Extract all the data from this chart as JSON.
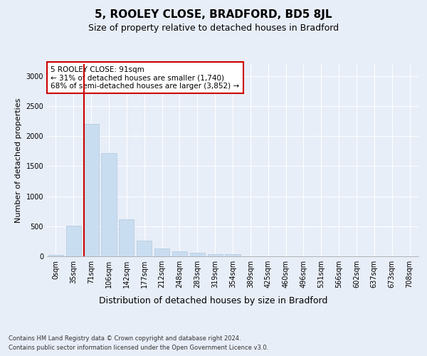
{
  "title1": "5, ROOLEY CLOSE, BRADFORD, BD5 8JL",
  "title2": "Size of property relative to detached houses in Bradford",
  "xlabel": "Distribution of detached houses by size in Bradford",
  "ylabel": "Number of detached properties",
  "categories": [
    "0sqm",
    "35sqm",
    "71sqm",
    "106sqm",
    "142sqm",
    "177sqm",
    "212sqm",
    "248sqm",
    "283sqm",
    "319sqm",
    "354sqm",
    "389sqm",
    "425sqm",
    "460sqm",
    "496sqm",
    "531sqm",
    "566sqm",
    "602sqm",
    "637sqm",
    "673sqm",
    "708sqm"
  ],
  "values": [
    20,
    510,
    2200,
    1720,
    620,
    255,
    130,
    80,
    55,
    40,
    30,
    5,
    5,
    5,
    5,
    5,
    2,
    2,
    2,
    2,
    2
  ],
  "bar_color": "#c9ddf0",
  "bar_edge_color": "#b0c8e0",
  "vline_color": "#cc0000",
  "annotation_text": "5 ROOLEY CLOSE: 91sqm\n← 31% of detached houses are smaller (1,740)\n68% of semi-detached houses are larger (3,852) →",
  "annotation_box_color": "white",
  "annotation_box_edgecolor": "#cc0000",
  "ylim": [
    0,
    3200
  ],
  "yticks": [
    0,
    500,
    1000,
    1500,
    2000,
    2500,
    3000
  ],
  "bg_color": "#e8eef8",
  "plot_bg_color": "#e8eef8",
  "footer1": "Contains HM Land Registry data © Crown copyright and database right 2024.",
  "footer2": "Contains public sector information licensed under the Open Government Licence v3.0.",
  "title1_fontsize": 11,
  "title2_fontsize": 9,
  "xlabel_fontsize": 9,
  "ylabel_fontsize": 8,
  "tick_fontsize": 7,
  "annotation_fontsize": 7.5,
  "footer_fontsize": 6
}
